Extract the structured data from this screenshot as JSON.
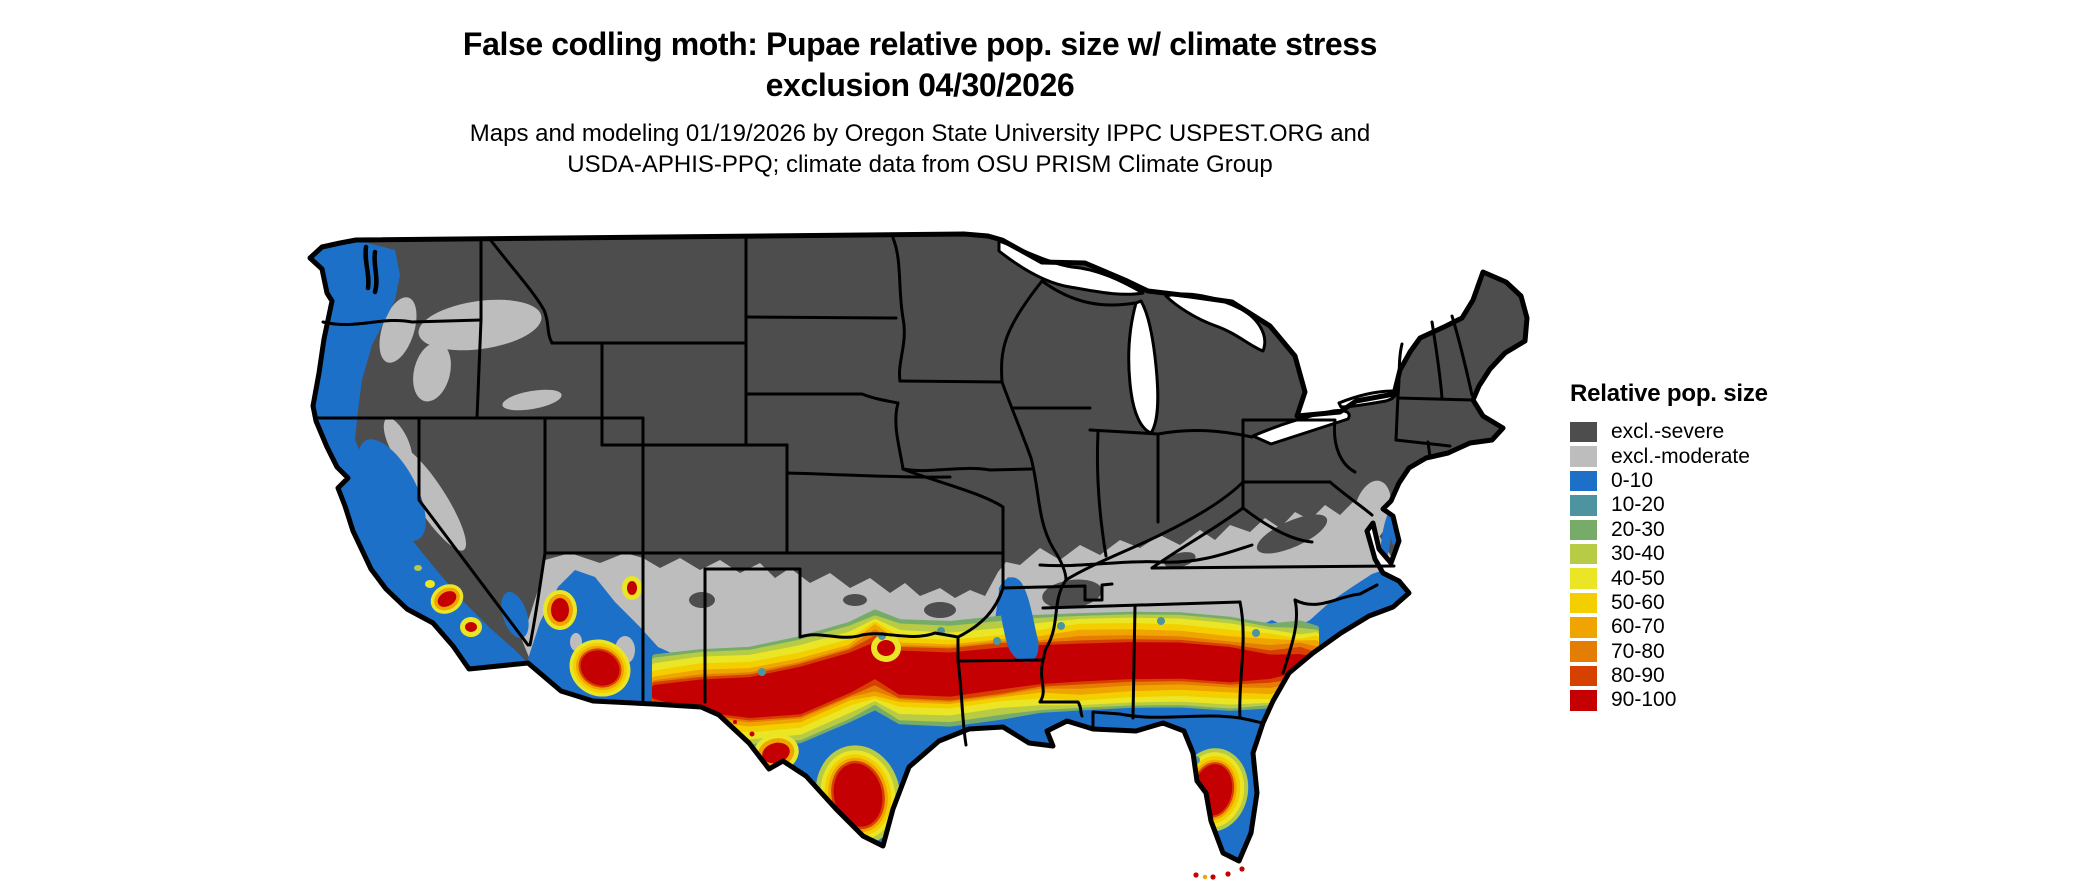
{
  "title": {
    "line1": "False codling moth: Pupae relative pop. size w/ climate stress",
    "line2": "exclusion 04/30/2026"
  },
  "subtitle": {
    "line1": "Maps and modeling 01/19/2026 by Oregon State University IPPC USPEST.ORG and",
    "line2": "USDA-APHIS-PPQ; climate data from OSU PRISM Climate Group"
  },
  "map": {
    "region": "Contiguous United States",
    "type": "choropleth raster map",
    "background_color": "#FFFFFF",
    "border_color": "#000000"
  },
  "legend": {
    "title": "Relative pop. size",
    "items": [
      {
        "label": "excl.-severe",
        "color": "#4D4D4D"
      },
      {
        "label": "excl.-moderate",
        "color": "#BDBDBD"
      },
      {
        "label": "0-10",
        "color": "#1C70C8"
      },
      {
        "label": "10-20",
        "color": "#4E93A0"
      },
      {
        "label": "20-30",
        "color": "#77AC68"
      },
      {
        "label": "30-40",
        "color": "#B8CB44"
      },
      {
        "label": "40-50",
        "color": "#EAE626"
      },
      {
        "label": "50-60",
        "color": "#F4CF00"
      },
      {
        "label": "60-70",
        "color": "#EFA400"
      },
      {
        "label": "70-80",
        "color": "#E47D02"
      },
      {
        "label": "80-90",
        "color": "#D64000"
      },
      {
        "label": "90-100",
        "color": "#C50003"
      }
    ]
  }
}
